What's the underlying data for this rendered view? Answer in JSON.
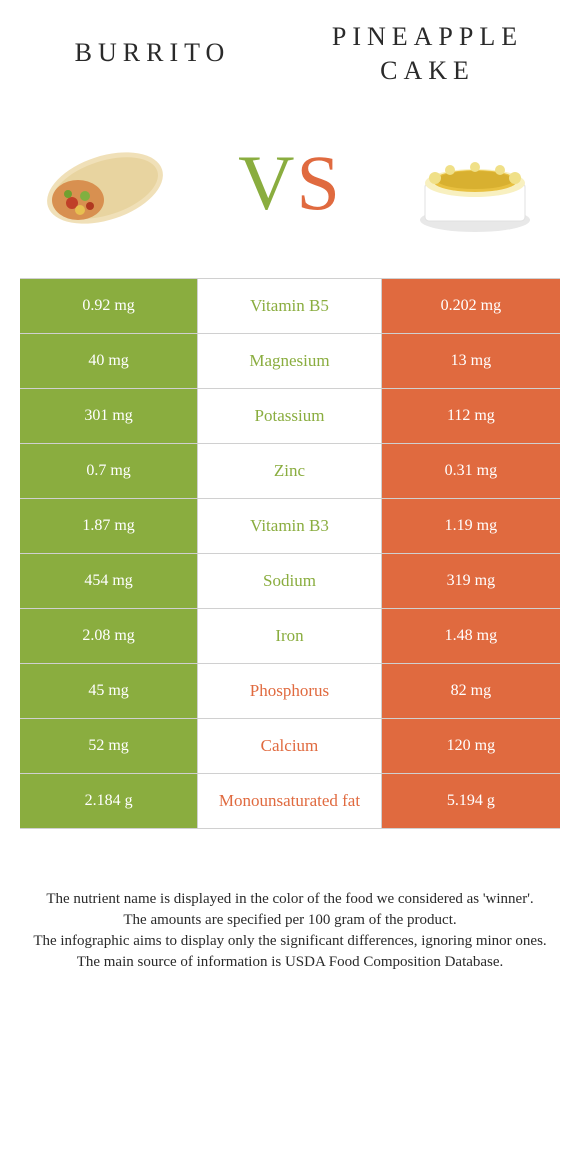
{
  "header": {
    "left_title": "BURRITO",
    "right_title": "PINEAPPLE CAKE",
    "vs_v": "V",
    "vs_s": "S"
  },
  "colors": {
    "left": "#8aad3f",
    "right": "#e06a3f",
    "row_border": "#d0d0d0",
    "text": "#2a2a2a",
    "bg": "#ffffff"
  },
  "table": {
    "rows": [
      {
        "left": "0.92 mg",
        "nutrient": "Vitamin B5",
        "right": "0.202 mg",
        "winner": "left"
      },
      {
        "left": "40 mg",
        "nutrient": "Magnesium",
        "right": "13 mg",
        "winner": "left"
      },
      {
        "left": "301 mg",
        "nutrient": "Potassium",
        "right": "112 mg",
        "winner": "left"
      },
      {
        "left": "0.7 mg",
        "nutrient": "Zinc",
        "right": "0.31 mg",
        "winner": "left"
      },
      {
        "left": "1.87 mg",
        "nutrient": "Vitamin B3",
        "right": "1.19 mg",
        "winner": "left"
      },
      {
        "left": "454 mg",
        "nutrient": "Sodium",
        "right": "319 mg",
        "winner": "left"
      },
      {
        "left": "2.08 mg",
        "nutrient": "Iron",
        "right": "1.48 mg",
        "winner": "left"
      },
      {
        "left": "45 mg",
        "nutrient": "Phosphorus",
        "right": "82 mg",
        "winner": "right"
      },
      {
        "left": "52 mg",
        "nutrient": "Calcium",
        "right": "120 mg",
        "winner": "right"
      },
      {
        "left": "2.184 g",
        "nutrient": "Monounsaturated fat",
        "right": "5.194 g",
        "winner": "right"
      }
    ]
  },
  "footer": {
    "line1": "The nutrient name is displayed in the color of the food we considered as 'winner'.",
    "line2": "The amounts are specified per 100 gram of the product.",
    "line3": "The infographic aims to display only the significant differences, ignoring minor ones.",
    "line4": "The main source of information is USDA Food Composition Database."
  }
}
